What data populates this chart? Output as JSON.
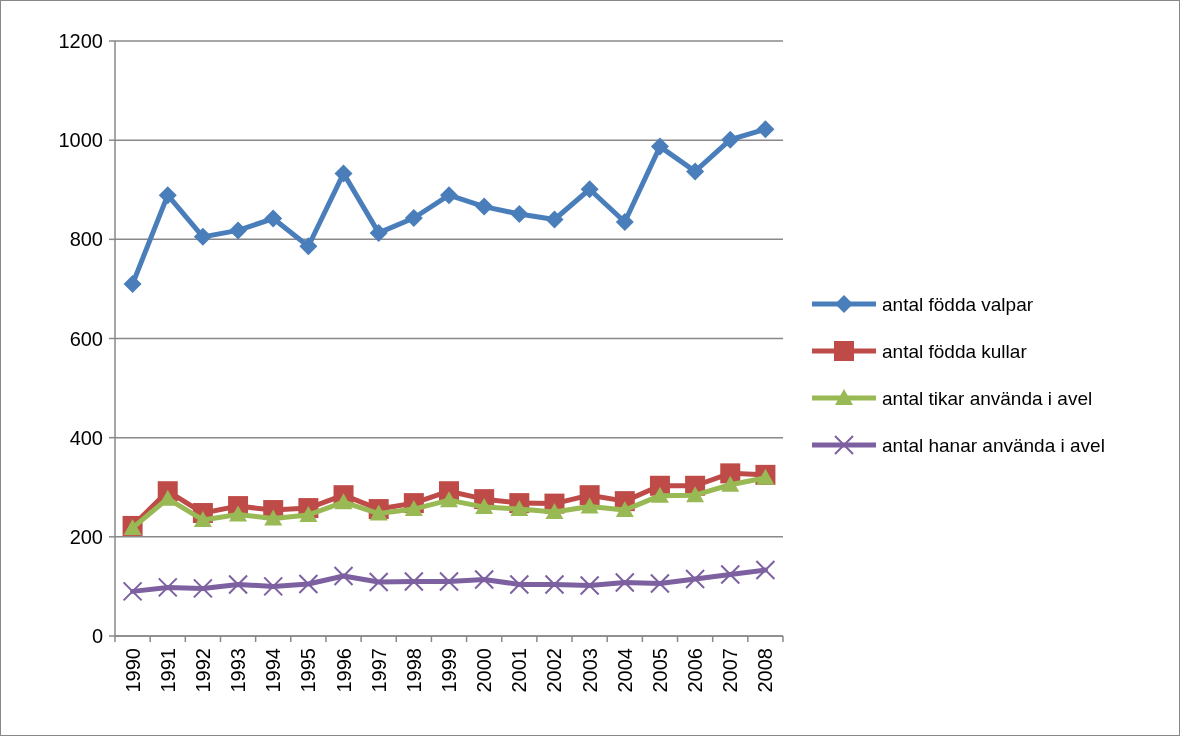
{
  "chart_data": {
    "type": "line",
    "categories": [
      "1990",
      "1991",
      "1992",
      "1993",
      "1994",
      "1995",
      "1996",
      "1997",
      "1998",
      "1999",
      "2000",
      "2001",
      "2002",
      "2003",
      "2004",
      "2005",
      "2006",
      "2007",
      "2008"
    ],
    "series": [
      {
        "name": "antal födda valpar",
        "color": "#4a7ebb",
        "marker": "diamond",
        "values": [
          710,
          889,
          805,
          818,
          842,
          786,
          933,
          813,
          843,
          889,
          866,
          851,
          840,
          901,
          835,
          987,
          937,
          1001,
          1022
        ]
      },
      {
        "name": "antal födda kullar",
        "color": "#be4b48",
        "marker": "square",
        "values": [
          222,
          292,
          248,
          262,
          254,
          258,
          284,
          256,
          268,
          292,
          276,
          268,
          267,
          284,
          272,
          303,
          303,
          328,
          325
        ]
      },
      {
        "name": "antal tikar använda i avel",
        "color": "#98b954",
        "marker": "triangle",
        "values": [
          218,
          277,
          234,
          245,
          237,
          244,
          270,
          247,
          256,
          274,
          260,
          256,
          250,
          261,
          254,
          283,
          284,
          305,
          319
        ]
      },
      {
        "name": "antal hanar använda i avel",
        "color": "#7d60a0",
        "marker": "cross",
        "values": [
          90,
          98,
          96,
          104,
          100,
          105,
          121,
          109,
          110,
          110,
          114,
          104,
          104,
          102,
          108,
          106,
          115,
          124,
          133
        ]
      }
    ],
    "ylim": [
      0,
      1200
    ],
    "yticks": [
      0,
      200,
      400,
      600,
      800,
      1000,
      1200
    ],
    "grid": "y",
    "legend": "right"
  }
}
